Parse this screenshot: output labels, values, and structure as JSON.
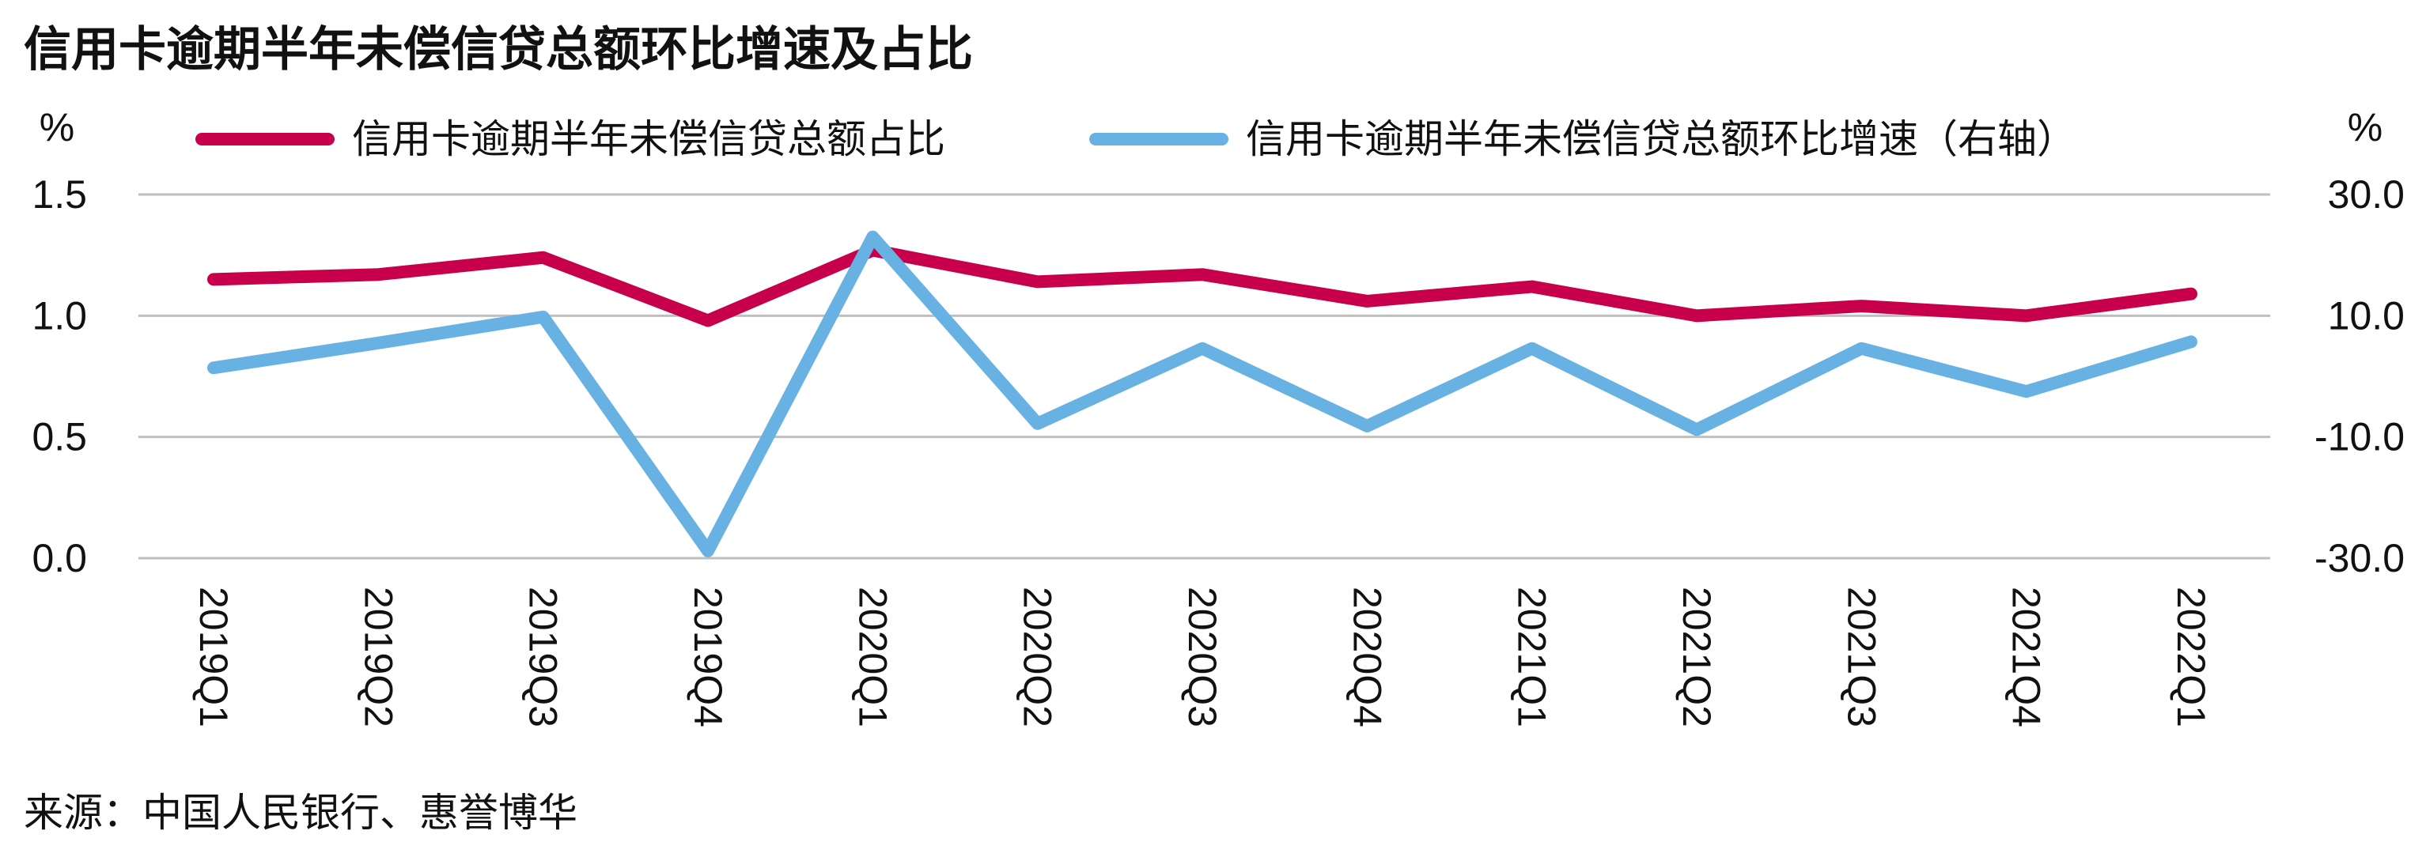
{
  "title": "信用卡逾期半年未偿信贷总额环比增速及占比",
  "source": "来源：中国人民银行、惠誉博华",
  "colors": {
    "ratio": "#C8004B",
    "growth": "#68B2E3",
    "grid": "#BFBFBF"
  },
  "chart_data": {
    "type": "line",
    "categories": [
      "2019Q1",
      "2019Q2",
      "2019Q3",
      "2019Q4",
      "2020Q1",
      "2020Q2",
      "2020Q3",
      "2020Q4",
      "2021Q1",
      "2021Q2",
      "2021Q3",
      "2021Q4",
      "2022Q1"
    ],
    "y_left": {
      "unit": "%",
      "ticks": [
        "1.5",
        "1.0",
        "0.5",
        "0.0"
      ],
      "ylim": [
        0,
        1.5
      ]
    },
    "y_right": {
      "unit": "%",
      "ticks": [
        "30.0",
        "10.0",
        "-10.0",
        "-30.0"
      ],
      "ylim": [
        -30,
        30
      ]
    },
    "grid": true,
    "legend_position": "top",
    "series": [
      {
        "name": "信用卡逾期半年未偿信贷总额占比",
        "axis": "left",
        "color": "#C8004B",
        "values": [
          1.15,
          1.17,
          1.24,
          0.98,
          1.27,
          1.14,
          1.17,
          1.06,
          1.12,
          1.0,
          1.04,
          1.0,
          1.09
        ]
      },
      {
        "name": "信用卡逾期半年未偿信贷总额环比增速（右轴）",
        "axis": "right",
        "color": "#68B2E3",
        "values": [
          1.4,
          5.5,
          9.8,
          -28.8,
          23.0,
          -7.8,
          4.6,
          -8.2,
          4.6,
          -8.8,
          4.6,
          -2.5,
          5.7
        ]
      }
    ]
  }
}
